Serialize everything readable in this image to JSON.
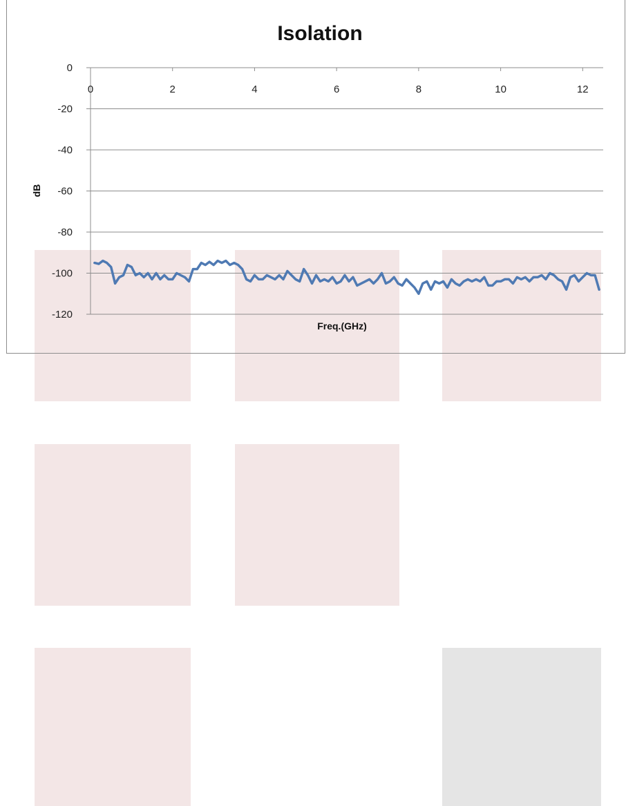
{
  "page": {
    "tile_color": "#f3e6e6",
    "tile_color_gray": "#e5e5e5",
    "tile_grid": [
      [
        true,
        true,
        true
      ],
      [
        true,
        true,
        false
      ],
      [
        true,
        false,
        "gray"
      ]
    ]
  },
  "chart_data": {
    "type": "line",
    "title": "Isolation",
    "xlabel": "Freq.(GHz)",
    "ylabel": "dB",
    "xlim": [
      0,
      12.5
    ],
    "ylim": [
      -120,
      0
    ],
    "x_ticks": [
      0,
      2,
      4,
      6,
      8,
      10,
      12
    ],
    "x_tick_labels": [
      "0",
      "2",
      "4",
      "6",
      "8",
      "10",
      "12"
    ],
    "y_ticks": [
      0,
      -20,
      -40,
      -60,
      -80,
      -100,
      -120
    ],
    "y_tick_labels": [
      "0",
      "-20",
      "-40",
      "-60",
      "-80",
      "-100",
      "-120"
    ],
    "grid": "horizontal",
    "legend": "none",
    "series": [
      {
        "color": "#4f7ab3",
        "x": [
          0.1,
          0.2,
          0.3,
          0.4,
          0.5,
          0.6,
          0.7,
          0.8,
          0.9,
          1.0,
          1.1,
          1.2,
          1.3,
          1.4,
          1.5,
          1.6,
          1.7,
          1.8,
          1.9,
          2.0,
          2.1,
          2.2,
          2.3,
          2.4,
          2.5,
          2.6,
          2.7,
          2.8,
          2.9,
          3.0,
          3.1,
          3.2,
          3.3,
          3.4,
          3.5,
          3.6,
          3.7,
          3.8,
          3.9,
          4.0,
          4.1,
          4.2,
          4.3,
          4.4,
          4.5,
          4.6,
          4.7,
          4.8,
          4.9,
          5.0,
          5.1,
          5.2,
          5.3,
          5.4,
          5.5,
          5.6,
          5.7,
          5.8,
          5.9,
          6.0,
          6.1,
          6.2,
          6.3,
          6.4,
          6.5,
          6.6,
          6.7,
          6.8,
          6.9,
          7.0,
          7.1,
          7.2,
          7.3,
          7.4,
          7.5,
          7.6,
          7.7,
          7.8,
          7.9,
          8.0,
          8.1,
          8.2,
          8.3,
          8.4,
          8.5,
          8.6,
          8.7,
          8.8,
          8.9,
          9.0,
          9.1,
          9.2,
          9.3,
          9.4,
          9.5,
          9.6,
          9.7,
          9.8,
          9.9,
          10.0,
          10.1,
          10.2,
          10.3,
          10.4,
          10.5,
          10.6,
          10.7,
          10.8,
          10.9,
          11.0,
          11.1,
          11.2,
          11.3,
          11.4,
          11.5,
          11.6,
          11.7,
          11.8,
          11.9,
          12.0,
          12.1,
          12.2,
          12.3,
          12.4
        ],
        "y": [
          -95,
          -95.5,
          -94,
          -95,
          -97,
          -105,
          -102,
          -101,
          -96,
          -97,
          -101,
          -100,
          -102,
          -100,
          -103,
          -100,
          -103,
          -101,
          -103,
          -103,
          -100,
          -101,
          -102,
          -104,
          -98,
          -98,
          -95,
          -96,
          -94.5,
          -96,
          -94,
          -95,
          -94,
          -96,
          -95,
          -96,
          -98,
          -103,
          -104,
          -101,
          -103,
          -103,
          -101,
          -102,
          -103,
          -101,
          -103,
          -99,
          -101,
          -103,
          -104,
          -98,
          -101,
          -105,
          -101,
          -104,
          -103,
          -104,
          -102,
          -105,
          -104,
          -101,
          -104,
          -102,
          -106,
          -105,
          -104,
          -103,
          -105,
          -103,
          -100,
          -105,
          -104,
          -102,
          -105,
          -106,
          -103,
          -105,
          -107,
          -110,
          -105,
          -104,
          -108,
          -104,
          -105,
          -104,
          -107,
          -103,
          -105,
          -106,
          -104,
          -103,
          -104,
          -103,
          -104,
          -102,
          -106,
          -106,
          -104,
          -104,
          -103,
          -103,
          -105,
          -102,
          -103,
          -102,
          -104,
          -102,
          -102,
          -101,
          -103,
          -100,
          -101,
          -103,
          -104,
          -108,
          -102,
          -101,
          -104,
          -102,
          -100,
          -101,
          -101,
          -108
        ]
      }
    ]
  }
}
